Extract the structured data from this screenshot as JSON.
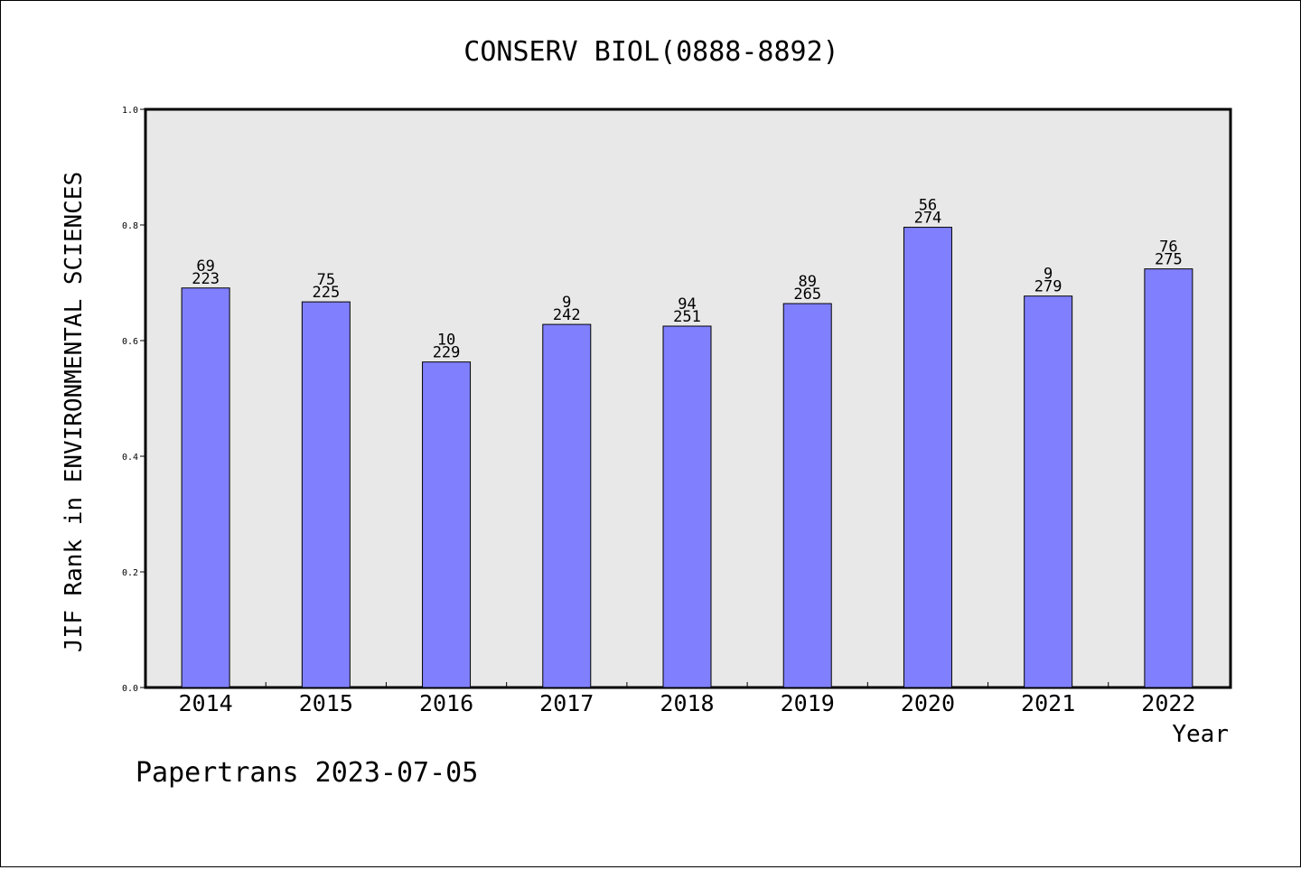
{
  "chart_data": {
    "type": "bar",
    "title": "CONSERV BIOL(0888-8892)",
    "xlabel": "Year",
    "ylabel": "JIF Rank in ENVIRONMENTAL SCIENCES",
    "categories": [
      "2014",
      "2015",
      "2016",
      "2017",
      "2018",
      "2019",
      "2020",
      "2021",
      "2022"
    ],
    "values": [
      0.691,
      0.667,
      0.563,
      0.628,
      0.625,
      0.664,
      0.796,
      0.677,
      0.724
    ],
    "rank": [
      "69",
      "75",
      "10",
      "9",
      "94",
      "89",
      "56",
      "9",
      "76"
    ],
    "total": [
      "223",
      "225",
      "229",
      "242",
      "251",
      "265",
      "274",
      "279",
      "275"
    ],
    "ylim": [
      0,
      1.0
    ],
    "yticks": [
      "0.0",
      "0.2",
      "0.4",
      "0.6",
      "0.8",
      "1.0"
    ],
    "grid": false,
    "colors": {
      "bar": "#8080ff",
      "plot_background": "#e8e8e8"
    }
  },
  "footer": {
    "source_text": "Papertrans 2023-07-05"
  }
}
